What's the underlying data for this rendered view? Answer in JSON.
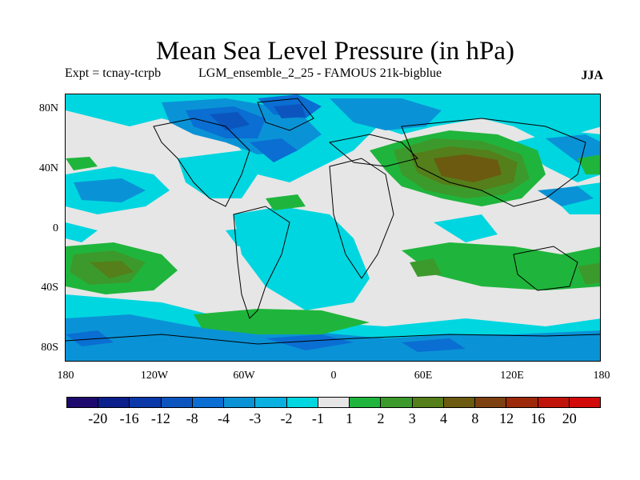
{
  "title": "Mean Sea Level Pressure (in hPa)",
  "experiment": "Expt = tcnay-tcrpb",
  "ensemble": "LGM_ensemble_2_25 - FAMOUS 21k-bigblue",
  "season": "JJA",
  "map": {
    "lat_labels": [
      "80N",
      "40N",
      "0",
      "40S",
      "80S"
    ],
    "lon_labels": [
      "180",
      "120W",
      "60W",
      "0",
      "60E",
      "120E",
      "180"
    ]
  },
  "colorbar": {
    "colors": [
      "#1e0a6e",
      "#0a1f8c",
      "#0a38a8",
      "#0c55bf",
      "#0a6ed2",
      "#0a92d6",
      "#0ab0e0",
      "#00d6e0",
      "#e6e6e6",
      "#1fb53c",
      "#3c9a2c",
      "#547f1a",
      "#6b5a10",
      "#7d4010",
      "#9c2a0a",
      "#c0140a",
      "#d20a0a"
    ],
    "labels": [
      "-20",
      "-16",
      "-12",
      "-8",
      "-4",
      "-3",
      "-2",
      "-1",
      "1",
      "2",
      "3",
      "4",
      "8",
      "12",
      "16",
      "20"
    ]
  }
}
